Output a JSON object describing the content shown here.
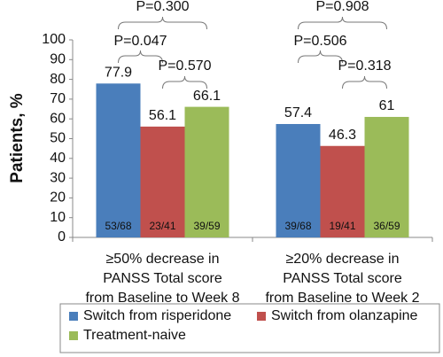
{
  "chart_data": {
    "type": "bar",
    "y_label": "Patients, %",
    "categories": [
      [
        "≥50% decrease in",
        "PANSS Total score",
        "from Baseline to Week 8"
      ],
      [
        "≥20% decrease in",
        "PANSS Total score",
        "from Baseline to Week 2"
      ]
    ],
    "series": [
      {
        "name": "Switch from risperidone",
        "color": "#4a7ebb",
        "values": [
          77.9,
          57.4
        ],
        "fractions": [
          "53/68",
          "39/68"
        ]
      },
      {
        "name": "Switch from olanzapine",
        "color": "#c0504d",
        "values": [
          56.1,
          46.3
        ],
        "fractions": [
          "23/41",
          "19/41"
        ]
      },
      {
        "name": "Treatment-naive",
        "color": "#9bbb59",
        "values": [
          66.1,
          61
        ],
        "fractions": [
          "39/59",
          "36/59"
        ]
      }
    ],
    "p_values": [
      [
        "P=0.047",
        "P=0.570",
        "P=0.300"
      ],
      [
        "P=0.506",
        "P=0.318",
        "P=0.908"
      ]
    ],
    "ylim": [
      0,
      100
    ],
    "yticks": [
      0,
      10,
      20,
      30,
      40,
      50,
      60,
      70,
      80,
      90,
      100
    ],
    "grid": false
  }
}
